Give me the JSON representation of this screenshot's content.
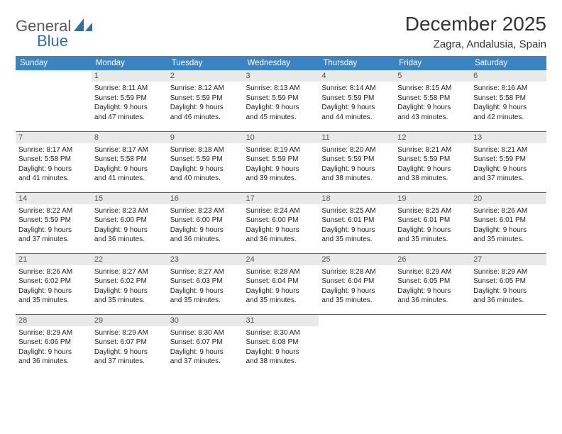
{
  "brand": {
    "text_general": "General",
    "text_blue": "Blue",
    "logo_color": "#2f6fae"
  },
  "header": {
    "month_title": "December 2025",
    "location": "Zagra, Andalusia, Spain"
  },
  "colors": {
    "header_row_bg": "#3b84c4",
    "header_row_text": "#ffffff",
    "daynum_bg": "#e9e9e9",
    "daynum_text": "#555555",
    "cell_border": "#2f6fae",
    "body_text": "#222222"
  },
  "weekdays": [
    "Sunday",
    "Monday",
    "Tuesday",
    "Wednesday",
    "Thursday",
    "Friday",
    "Saturday"
  ],
  "weeks": [
    [
      {
        "day": "",
        "lines": []
      },
      {
        "day": "1",
        "lines": [
          "Sunrise: 8:11 AM",
          "Sunset: 5:59 PM",
          "Daylight: 9 hours",
          "and 47 minutes."
        ]
      },
      {
        "day": "2",
        "lines": [
          "Sunrise: 8:12 AM",
          "Sunset: 5:59 PM",
          "Daylight: 9 hours",
          "and 46 minutes."
        ]
      },
      {
        "day": "3",
        "lines": [
          "Sunrise: 8:13 AM",
          "Sunset: 5:59 PM",
          "Daylight: 9 hours",
          "and 45 minutes."
        ]
      },
      {
        "day": "4",
        "lines": [
          "Sunrise: 8:14 AM",
          "Sunset: 5:59 PM",
          "Daylight: 9 hours",
          "and 44 minutes."
        ]
      },
      {
        "day": "5",
        "lines": [
          "Sunrise: 8:15 AM",
          "Sunset: 5:58 PM",
          "Daylight: 9 hours",
          "and 43 minutes."
        ]
      },
      {
        "day": "6",
        "lines": [
          "Sunrise: 8:16 AM",
          "Sunset: 5:58 PM",
          "Daylight: 9 hours",
          "and 42 minutes."
        ]
      }
    ],
    [
      {
        "day": "7",
        "lines": [
          "Sunrise: 8:17 AM",
          "Sunset: 5:58 PM",
          "Daylight: 9 hours",
          "and 41 minutes."
        ]
      },
      {
        "day": "8",
        "lines": [
          "Sunrise: 8:17 AM",
          "Sunset: 5:58 PM",
          "Daylight: 9 hours",
          "and 41 minutes."
        ]
      },
      {
        "day": "9",
        "lines": [
          "Sunrise: 8:18 AM",
          "Sunset: 5:59 PM",
          "Daylight: 9 hours",
          "and 40 minutes."
        ]
      },
      {
        "day": "10",
        "lines": [
          "Sunrise: 8:19 AM",
          "Sunset: 5:59 PM",
          "Daylight: 9 hours",
          "and 39 minutes."
        ]
      },
      {
        "day": "11",
        "lines": [
          "Sunrise: 8:20 AM",
          "Sunset: 5:59 PM",
          "Daylight: 9 hours",
          "and 38 minutes."
        ]
      },
      {
        "day": "12",
        "lines": [
          "Sunrise: 8:21 AM",
          "Sunset: 5:59 PM",
          "Daylight: 9 hours",
          "and 38 minutes."
        ]
      },
      {
        "day": "13",
        "lines": [
          "Sunrise: 8:21 AM",
          "Sunset: 5:59 PM",
          "Daylight: 9 hours",
          "and 37 minutes."
        ]
      }
    ],
    [
      {
        "day": "14",
        "lines": [
          "Sunrise: 8:22 AM",
          "Sunset: 5:59 PM",
          "Daylight: 9 hours",
          "and 37 minutes."
        ]
      },
      {
        "day": "15",
        "lines": [
          "Sunrise: 8:23 AM",
          "Sunset: 6:00 PM",
          "Daylight: 9 hours",
          "and 36 minutes."
        ]
      },
      {
        "day": "16",
        "lines": [
          "Sunrise: 8:23 AM",
          "Sunset: 6:00 PM",
          "Daylight: 9 hours",
          "and 36 minutes."
        ]
      },
      {
        "day": "17",
        "lines": [
          "Sunrise: 8:24 AM",
          "Sunset: 6:00 PM",
          "Daylight: 9 hours",
          "and 36 minutes."
        ]
      },
      {
        "day": "18",
        "lines": [
          "Sunrise: 8:25 AM",
          "Sunset: 6:01 PM",
          "Daylight: 9 hours",
          "and 35 minutes."
        ]
      },
      {
        "day": "19",
        "lines": [
          "Sunrise: 8:25 AM",
          "Sunset: 6:01 PM",
          "Daylight: 9 hours",
          "and 35 minutes."
        ]
      },
      {
        "day": "20",
        "lines": [
          "Sunrise: 8:26 AM",
          "Sunset: 6:01 PM",
          "Daylight: 9 hours",
          "and 35 minutes."
        ]
      }
    ],
    [
      {
        "day": "21",
        "lines": [
          "Sunrise: 8:26 AM",
          "Sunset: 6:02 PM",
          "Daylight: 9 hours",
          "and 35 minutes."
        ]
      },
      {
        "day": "22",
        "lines": [
          "Sunrise: 8:27 AM",
          "Sunset: 6:02 PM",
          "Daylight: 9 hours",
          "and 35 minutes."
        ]
      },
      {
        "day": "23",
        "lines": [
          "Sunrise: 8:27 AM",
          "Sunset: 6:03 PM",
          "Daylight: 9 hours",
          "and 35 minutes."
        ]
      },
      {
        "day": "24",
        "lines": [
          "Sunrise: 8:28 AM",
          "Sunset: 6:04 PM",
          "Daylight: 9 hours",
          "and 35 minutes."
        ]
      },
      {
        "day": "25",
        "lines": [
          "Sunrise: 8:28 AM",
          "Sunset: 6:04 PM",
          "Daylight: 9 hours",
          "and 35 minutes."
        ]
      },
      {
        "day": "26",
        "lines": [
          "Sunrise: 8:29 AM",
          "Sunset: 6:05 PM",
          "Daylight: 9 hours",
          "and 36 minutes."
        ]
      },
      {
        "day": "27",
        "lines": [
          "Sunrise: 8:29 AM",
          "Sunset: 6:05 PM",
          "Daylight: 9 hours",
          "and 36 minutes."
        ]
      }
    ],
    [
      {
        "day": "28",
        "lines": [
          "Sunrise: 8:29 AM",
          "Sunset: 6:06 PM",
          "Daylight: 9 hours",
          "and 36 minutes."
        ]
      },
      {
        "day": "29",
        "lines": [
          "Sunrise: 8:29 AM",
          "Sunset: 6:07 PM",
          "Daylight: 9 hours",
          "and 37 minutes."
        ]
      },
      {
        "day": "30",
        "lines": [
          "Sunrise: 8:30 AM",
          "Sunset: 6:07 PM",
          "Daylight: 9 hours",
          "and 37 minutes."
        ]
      },
      {
        "day": "31",
        "lines": [
          "Sunrise: 8:30 AM",
          "Sunset: 6:08 PM",
          "Daylight: 9 hours",
          "and 38 minutes."
        ]
      },
      {
        "day": "",
        "lines": []
      },
      {
        "day": "",
        "lines": []
      },
      {
        "day": "",
        "lines": []
      }
    ]
  ]
}
